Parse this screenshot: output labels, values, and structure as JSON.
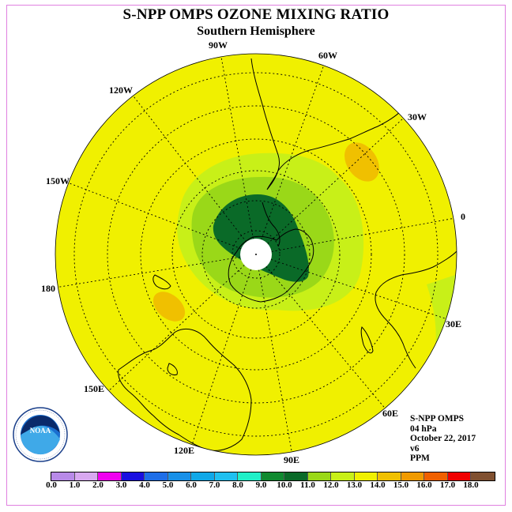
{
  "title": "S-NPP OMPS OZONE MIXING RATIO",
  "subtitle": "Southern Hemisphere",
  "longitude_labels": {
    "w90": "90W",
    "w60": "60W",
    "w30": "30W",
    "e0": "0",
    "e30": "30E",
    "e60": "60E",
    "e90": "90E",
    "e120": "120E",
    "e150": "150E",
    "e180": "180",
    "w150": "150W",
    "w120": "120W"
  },
  "info": {
    "instrument": "S-NPP OMPS",
    "level": "04 hPa",
    "date": "October 22, 2017",
    "version": "v6",
    "units": "PPM"
  },
  "logo": {
    "text": "NOAA",
    "ring_text": "NATIONAL OCEANIC AND ATMOSPHERIC ADMINISTRATION · U.S. DEPARTMENT OF COMMERCE"
  },
  "colorbar": {
    "colors": [
      "#b88ae8",
      "#d8a8f0",
      "#f000f0",
      "#1a10e0",
      "#1e6ee8",
      "#1890e8",
      "#10a8e8",
      "#20c0f0",
      "#20f0c8",
      "#108a30",
      "#0a6a28",
      "#9ad818",
      "#c8f018",
      "#f0f000",
      "#f0c000",
      "#f09a00",
      "#f06000",
      "#f00000",
      "#805030"
    ],
    "tick_labels": [
      "0.0",
      "1.0",
      "2.0",
      "3.0",
      "4.0",
      "5.0",
      "6.0",
      "7.0",
      "8.0",
      "9.0",
      "10.0",
      "11.0",
      "12.0",
      "13.0",
      "14.0",
      "15.0",
      "16.0",
      "17.0",
      "18.0"
    ]
  },
  "colors": {
    "ocean_fill": "#f0f000",
    "rim_green": "#c8f018",
    "mid_green": "#9ad818",
    "dark_green": "#0a6a28",
    "orange": "#f0c000",
    "pole": "#ffffff"
  }
}
